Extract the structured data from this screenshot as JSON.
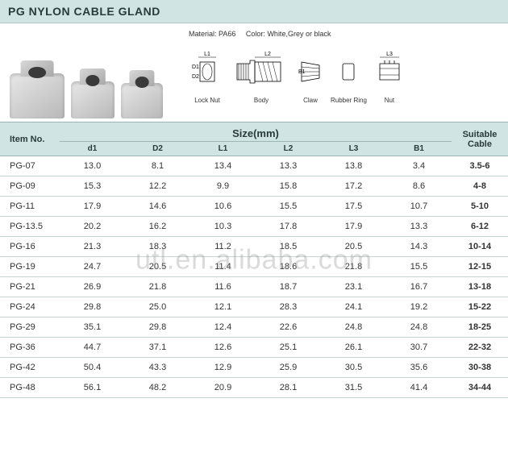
{
  "title": "PG NYLON CABLE GLAND",
  "diagram": {
    "material_label": "Material:",
    "material_value": "PA66",
    "color_label": "Color:",
    "color_value": "White,Grey or black",
    "dims": {
      "L1": "L1",
      "L2": "L2",
      "L3": "L3",
      "D1": "D1",
      "D2": "D2",
      "B1": "B1"
    },
    "parts": {
      "locknut": "Lock Nut",
      "body": "Body",
      "claw": "Claw",
      "ring": "Rubber Ring",
      "nut": "Nut"
    }
  },
  "watermark": "utl.en.alibaba.com",
  "table": {
    "headers": {
      "item": "Item No.",
      "size": "Size(mm)",
      "cable": "Suitable Cable",
      "cols": [
        "d1",
        "D2",
        "L1",
        "L2",
        "L3",
        "B1"
      ]
    },
    "rows": [
      {
        "item": "PG-07",
        "d1": "13.0",
        "d2": "8.1",
        "l1": "13.4",
        "l2": "13.3",
        "l3": "13.8",
        "b1": "3.4",
        "cable": "3.5-6"
      },
      {
        "item": "PG-09",
        "d1": "15.3",
        "d2": "12.2",
        "l1": "9.9",
        "l2": "15.8",
        "l3": "17.2",
        "b1": "8.6",
        "cable": "4-8"
      },
      {
        "item": "PG-11",
        "d1": "17.9",
        "d2": "14.6",
        "l1": "10.6",
        "l2": "15.5",
        "l3": "17.5",
        "b1": "10.7",
        "cable": "5-10"
      },
      {
        "item": "PG-13.5",
        "d1": "20.2",
        "d2": "16.2",
        "l1": "10.3",
        "l2": "17.8",
        "l3": "17.9",
        "b1": "13.3",
        "cable": "6-12"
      },
      {
        "item": "PG-16",
        "d1": "21.3",
        "d2": "18.3",
        "l1": "11.2",
        "l2": "18.5",
        "l3": "20.5",
        "b1": "14.3",
        "cable": "10-14"
      },
      {
        "item": "PG-19",
        "d1": "24.7",
        "d2": "20.5",
        "l1": "11.4",
        "l2": "18.6",
        "l3": "21.8",
        "b1": "15.5",
        "cable": "12-15"
      },
      {
        "item": "PG-21",
        "d1": "26.9",
        "d2": "21.8",
        "l1": "11.6",
        "l2": "18.7",
        "l3": "23.1",
        "b1": "16.7",
        "cable": "13-18"
      },
      {
        "item": "PG-24",
        "d1": "29.8",
        "d2": "25.0",
        "l1": "12.1",
        "l2": "28.3",
        "l3": "24.1",
        "b1": "19.2",
        "cable": "15-22"
      },
      {
        "item": "PG-29",
        "d1": "35.1",
        "d2": "29.8",
        "l1": "12.4",
        "l2": "22.6",
        "l3": "24.8",
        "b1": "24.8",
        "cable": "18-25"
      },
      {
        "item": "PG-36",
        "d1": "44.7",
        "d2": "37.1",
        "l1": "12.6",
        "l2": "25.1",
        "l3": "26.1",
        "b1": "30.7",
        "cable": "22-32"
      },
      {
        "item": "PG-42",
        "d1": "50.4",
        "d2": "43.3",
        "l1": "12.9",
        "l2": "25.9",
        "l3": "30.5",
        "b1": "35.6",
        "cable": "30-38"
      },
      {
        "item": "PG-48",
        "d1": "56.1",
        "d2": "48.2",
        "l1": "20.9",
        "l2": "28.1",
        "l3": "31.5",
        "b1": "41.4",
        "cable": "34-44"
      }
    ]
  },
  "colors": {
    "header_bg": "#d0e4e4",
    "border": "#9db5b5",
    "row_border": "#c8d4d4",
    "text": "#333333"
  }
}
